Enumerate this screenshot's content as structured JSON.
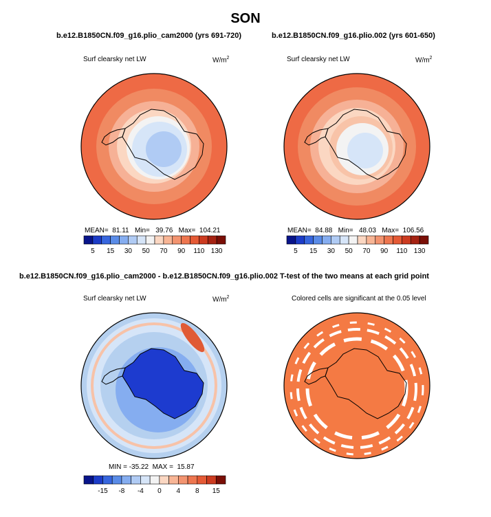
{
  "title": "SON",
  "panels": [
    {
      "title": "b.e12.B1850CN.f09_g16.plio_cam2000 (yrs 691-720)",
      "subtitle": "Surf clearsky net LW",
      "units_base": "W/m",
      "units_exp": "2",
      "stats": {
        "mean_label": "MEAN=",
        "mean": "81.11",
        "min_label": "Min=",
        "min": "39.76",
        "max_label": "Max=",
        "max": "104.21"
      }
    },
    {
      "title": "b.e12.B1850CN.f09_g16.plio.002 (yrs 601-650)",
      "subtitle": "Surf clearsky net LW",
      "units_base": "W/m",
      "units_exp": "2",
      "stats": {
        "mean_label": "MEAN=",
        "mean": "84.88",
        "min_label": "Min=",
        "min": "48.03",
        "max_label": "Max=",
        "max": "106.56"
      }
    },
    {
      "title": "b.e12.B1850CN.f09_g16.plio_cam2000 - b.e12.B1850CN.f09_g16.plio.002",
      "subtitle": "Surf clearsky net LW",
      "units_base": "W/m",
      "units_exp": "2",
      "stats_text": "MIN = -35.22  MAX =  15.87"
    },
    {
      "title": "T-test of the two means at each grid point",
      "subtitle": "Colored cells are significant at the 0.05 level"
    }
  ],
  "colors": {
    "ocean_warm": "#ee6a45",
    "ice_pale": "#ddebf7",
    "diff_bg": "#b5d0ef",
    "diff_dark": "#1d3bcf",
    "ttest_fill": "#f47a44"
  },
  "chart_data": [
    {
      "type": "heatmap",
      "projection": "south-polar-stereographic",
      "title": "b.e12.B1850CN.f09_g16.plio_cam2000 (yrs 691-720)",
      "variable": "Surf clearsky net LW",
      "units": "W/m2",
      "colorbar": {
        "ticks": [
          5,
          15,
          30,
          50,
          70,
          90,
          110,
          130
        ],
        "levels": [
          5,
          10,
          15,
          20,
          30,
          40,
          50,
          60,
          70,
          80,
          90,
          100,
          110,
          120,
          130
        ],
        "colors": [
          "#08148a",
          "#1c3cc8",
          "#3766de",
          "#5a8ce8",
          "#85adf0",
          "#b0cbf4",
          "#d6e5f8",
          "#f3f3f3",
          "#fbd7c2",
          "#f8b595",
          "#f39470",
          "#ee764f",
          "#e55a35",
          "#cc3b20",
          "#a52212",
          "#7a0e06"
        ]
      },
      "stats": {
        "mean": 81.11,
        "min": 39.76,
        "max": 104.21
      }
    },
    {
      "type": "heatmap",
      "projection": "south-polar-stereographic",
      "title": "b.e12.B1850CN.f09_g16.plio.002 (yrs 601-650)",
      "variable": "Surf clearsky net LW",
      "units": "W/m2",
      "colorbar": {
        "ticks": [
          5,
          15,
          30,
          50,
          70,
          90,
          110,
          130
        ],
        "levels": [
          5,
          10,
          15,
          20,
          30,
          40,
          50,
          60,
          70,
          80,
          90,
          100,
          110,
          120,
          130
        ],
        "colors": [
          "#08148a",
          "#1c3cc8",
          "#3766de",
          "#5a8ce8",
          "#85adf0",
          "#b0cbf4",
          "#d6e5f8",
          "#f3f3f3",
          "#fbd7c2",
          "#f8b595",
          "#f39470",
          "#ee764f",
          "#e55a35",
          "#cc3b20",
          "#a52212",
          "#7a0e06"
        ]
      },
      "stats": {
        "mean": 84.88,
        "min": 48.03,
        "max": 106.56
      }
    },
    {
      "type": "heatmap",
      "projection": "south-polar-stereographic",
      "title": "b.e12.B1850CN.f09_g16.plio_cam2000 - b.e12.B1850CN.f09_g16.plio.002",
      "variable": "Surf clearsky net LW",
      "units": "W/m2",
      "colorbar": {
        "ticks": [
          -15,
          -8,
          -4,
          0,
          4,
          8,
          15
        ],
        "levels": [
          -20,
          -15,
          -10,
          -8,
          -6,
          -4,
          -2,
          0,
          2,
          4,
          6,
          8,
          10,
          15
        ],
        "colors": [
          "#08148a",
          "#1c3cc8",
          "#3766de",
          "#5a8ce8",
          "#85adf0",
          "#b0cbf4",
          "#d6e5f8",
          "#f3f3f3",
          "#fbd7c2",
          "#f8b595",
          "#f39470",
          "#ee764f",
          "#e55a35",
          "#cc3b20",
          "#7a0e06"
        ]
      },
      "stats": {
        "min": -35.22,
        "max": 15.87
      }
    },
    {
      "type": "heatmap",
      "projection": "south-polar-stereographic",
      "title": "T-test of the two means at each grid point",
      "note": "Colored cells are significant at the 0.05 level"
    }
  ]
}
